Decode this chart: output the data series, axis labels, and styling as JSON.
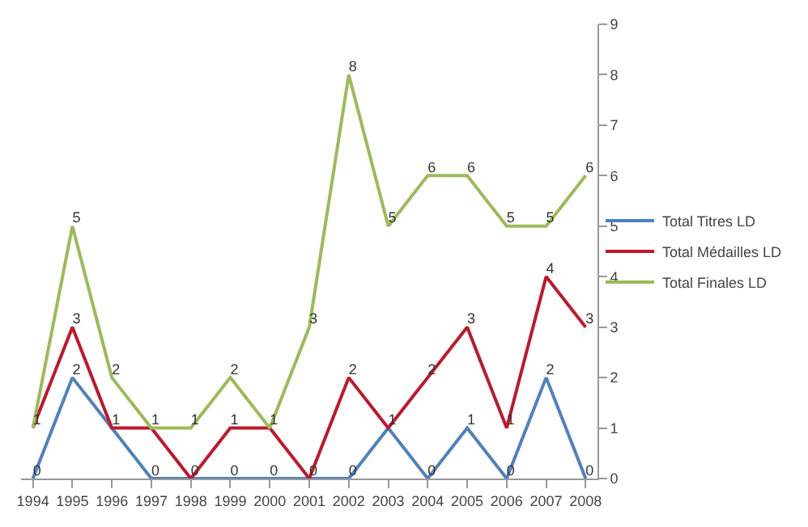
{
  "chart_data": {
    "type": "line",
    "categories": [
      "1994",
      "1995",
      "1996",
      "1997",
      "1998",
      "1999",
      "2000",
      "2001",
      "2002",
      "2003",
      "2004",
      "2005",
      "2006",
      "2007",
      "2008"
    ],
    "series": [
      {
        "name": "Total Titres LD",
        "color": "#4f81bd",
        "values": [
          0,
          2,
          1,
          0,
          0,
          0,
          0,
          0,
          0,
          1,
          0,
          1,
          0,
          2,
          0
        ],
        "value_labels": [
          "0",
          "2",
          null,
          "0",
          null,
          "0",
          "0",
          null,
          "0",
          null,
          "0",
          "1",
          "0",
          "2",
          "0"
        ]
      },
      {
        "name": "Total Médailles LD",
        "color": "#c0182a",
        "values": [
          1,
          3,
          1,
          1,
          0,
          1,
          1,
          0,
          2,
          1,
          2,
          3,
          1,
          4,
          3
        ],
        "value_labels": [
          null,
          "3",
          "1",
          null,
          "0",
          "1",
          null,
          "0",
          "2",
          "1",
          "2",
          "3",
          "1",
          "4",
          "3"
        ]
      },
      {
        "name": "Total Finales LD",
        "color": "#9bbb59",
        "values": [
          1,
          5,
          2,
          1,
          1,
          2,
          1,
          3,
          8,
          5,
          6,
          6,
          5,
          5,
          6
        ],
        "value_labels": [
          "1",
          "5",
          "2",
          "1",
          "1",
          "2",
          "1",
          "3",
          "8",
          "5",
          "6",
          "6",
          "5",
          "5",
          "6"
        ]
      }
    ],
    "ylim": [
      0,
      9
    ],
    "yticks": [
      0,
      1,
      2,
      3,
      4,
      5,
      6,
      7,
      8,
      9
    ],
    "grid": false,
    "legend": "right",
    "marker": "none",
    "line_style": "solid"
  }
}
